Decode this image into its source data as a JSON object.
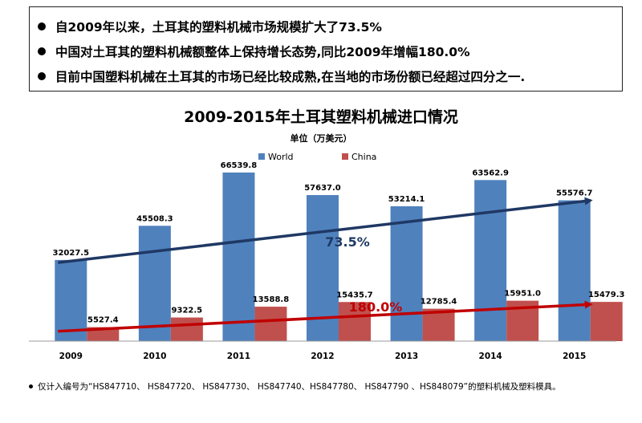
{
  "bullets": [
    "自2009年以来，土耳其的塑料机械市场规模扩大了73.5%",
    "中国对土耳其的塑料机械额整体上保持增长态势,同比2009年增幅180.0%",
    "目前中国塑料机械在土耳其的市场已经比较成熟,在当地的市场份额已经超过四分之一."
  ],
  "footnote": "仅计入编号为“HS847710、 HS847720、 HS847730、 HS847740、HS847780、 HS847790 、HS848079”的塑料机械及塑料模具。",
  "chart_data": {
    "type": "bar",
    "title": "2009-2015年土耳其塑料机械进口情况",
    "subtitle": "单位（万美元）",
    "categories": [
      "2009",
      "2010",
      "2011",
      "2012",
      "2013",
      "2014",
      "2015"
    ],
    "series": [
      {
        "name": "World",
        "color": "#4F81BD",
        "values": [
          32027.5,
          45508.3,
          66539.8,
          57637.0,
          53214.1,
          63562.9,
          55576.7
        ]
      },
      {
        "name": "China",
        "color": "#C0504D",
        "values": [
          5527.4,
          9322.5,
          13588.8,
          15435.7,
          12785.4,
          15951.0,
          15479.3
        ]
      }
    ],
    "data_labels": {
      "World": [
        "32027.5",
        "45508.3",
        "66539.8",
        "57637.0",
        "53214.1",
        "63562.9",
        "55576.7"
      ],
      "China": [
        "5527.4",
        "9322.5",
        "13588.8",
        "15435.7",
        "12785.4",
        "15951.0",
        "15479.3"
      ]
    },
    "ylim": [
      0,
      70000
    ],
    "legend": "top-center",
    "grid": false,
    "annotations": [
      {
        "text": "73.5%",
        "color": "#1F3864",
        "series": "World",
        "trend_from": 2009,
        "trend_to": 2015,
        "trend_start": 31000,
        "trend_end": 55500
      },
      {
        "text": "180.0%",
        "color": "#C00000",
        "series": "China",
        "trend_from": 2009,
        "trend_to": 2015,
        "trend_start": 3900,
        "trend_end": 14500
      }
    ]
  }
}
